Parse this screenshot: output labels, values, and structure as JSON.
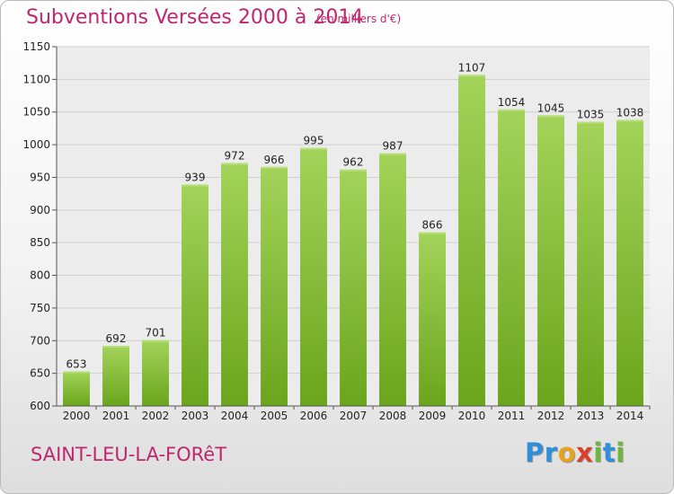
{
  "chart_data": {
    "type": "bar",
    "title": "Subventions Versées 2000 à 2014",
    "unit_note": "(en milliers d'€)",
    "place": "SAINT-LEU-LA-FORêT",
    "categories": [
      "2000",
      "2001",
      "2002",
      "2003",
      "2004",
      "2005",
      "2006",
      "2007",
      "2008",
      "2009",
      "2010",
      "2011",
      "2012",
      "2013",
      "2014"
    ],
    "values": [
      653,
      692,
      701,
      939,
      972,
      966,
      995,
      962,
      987,
      866,
      1107,
      1054,
      1045,
      1035,
      1038
    ],
    "ylim": [
      600,
      1150
    ],
    "yticks": [
      600,
      650,
      700,
      750,
      800,
      850,
      900,
      950,
      1000,
      1050,
      1100,
      1150
    ],
    "grid": true,
    "bar_color_light": "#a3d35a",
    "bar_color_dark": "#6aa51c",
    "accent_color": "#c0266f"
  },
  "logo": {
    "letters": [
      {
        "ch": "P",
        "color": "#2f8fd8"
      },
      {
        "ch": "r",
        "color": "#2f8fd8"
      },
      {
        "ch": "o",
        "color": "#e8a21d"
      },
      {
        "ch": "x",
        "color": "#d9402b"
      },
      {
        "ch": "i",
        "color": "#6fb63d"
      },
      {
        "ch": "t",
        "color": "#2f8fd8"
      },
      {
        "ch": "i",
        "color": "#6fb63d"
      }
    ]
  }
}
